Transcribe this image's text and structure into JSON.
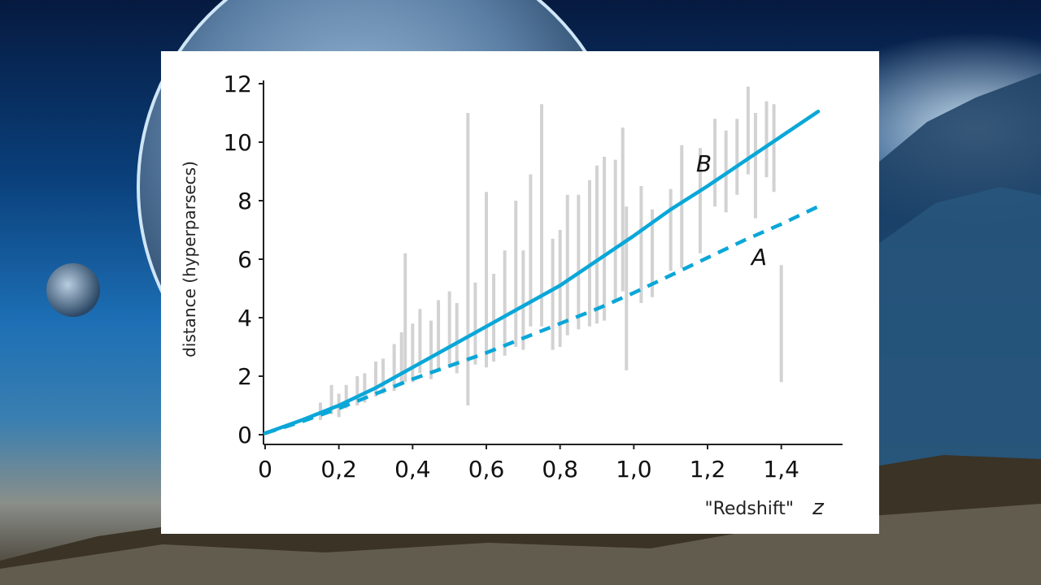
{
  "chart_data": {
    "type": "scatter",
    "xlabel": "\"Redshift\"",
    "xlabel_symbol": "z",
    "ylabel": "distance (hyperparsecs)",
    "xlim": [
      0,
      1.5
    ],
    "ylim": [
      0,
      12
    ],
    "x_ticks": [
      "0",
      "0,2",
      "0,4",
      "0,6",
      "0,8",
      "1,0",
      "1,2",
      "1,4"
    ],
    "x_tick_values": [
      0,
      0.2,
      0.4,
      0.6,
      0.8,
      1.0,
      1.2,
      1.4
    ],
    "y_ticks": [
      "0",
      "2",
      "4",
      "6",
      "8",
      "10",
      "12"
    ],
    "y_tick_values": [
      0,
      2,
      4,
      6,
      8,
      10,
      12
    ],
    "series": [
      {
        "name": "B",
        "style": "solid",
        "color": "#0aa7d8",
        "x": [
          0,
          0.1,
          0.2,
          0.3,
          0.4,
          0.5,
          0.6,
          0.7,
          0.8,
          0.9,
          1.0,
          1.1,
          1.2,
          1.3,
          1.4,
          1.5
        ],
        "y": [
          0.05,
          0.5,
          1.0,
          1.6,
          2.3,
          3.0,
          3.7,
          4.4,
          5.1,
          5.95,
          6.8,
          7.7,
          8.5,
          9.35,
          10.2,
          11.05
        ]
      },
      {
        "name": "A",
        "style": "dashed",
        "color": "#0aa7d8",
        "x": [
          0,
          0.1,
          0.2,
          0.3,
          0.4,
          0.5,
          0.6,
          0.7,
          0.8,
          0.9,
          1.0,
          1.1,
          1.2,
          1.3,
          1.4,
          1.5
        ],
        "y": [
          0.05,
          0.45,
          0.9,
          1.4,
          1.9,
          2.35,
          2.8,
          3.3,
          3.8,
          4.3,
          4.85,
          5.45,
          6.05,
          6.65,
          7.2,
          7.8
        ]
      },
      {
        "name": "",
        "style": "error-bars",
        "color": "#d2d2d2",
        "x": [
          0.15,
          0.18,
          0.2,
          0.22,
          0.25,
          0.27,
          0.3,
          0.32,
          0.35,
          0.37,
          0.38,
          0.4,
          0.42,
          0.45,
          0.47,
          0.5,
          0.52,
          0.55,
          0.57,
          0.6,
          0.62,
          0.65,
          0.68,
          0.7,
          0.72,
          0.75,
          0.78,
          0.8,
          0.82,
          0.85,
          0.88,
          0.9,
          0.92,
          0.95,
          0.97,
          0.98,
          1.02,
          1.05,
          1.1,
          1.13,
          1.18,
          1.22,
          1.25,
          1.28,
          1.31,
          1.33,
          1.36,
          1.38,
          1.4
        ],
        "y": [
          0.8,
          1.2,
          1.0,
          1.3,
          1.5,
          1.6,
          1.9,
          2.0,
          2.3,
          2.6,
          4.0,
          2.8,
          3.2,
          2.9,
          3.4,
          3.6,
          3.3,
          6.0,
          3.8,
          5.3,
          4.0,
          4.5,
          5.5,
          4.6,
          6.3,
          7.5,
          4.8,
          5.0,
          5.8,
          5.9,
          6.2,
          6.5,
          6.7,
          7.0,
          7.7,
          5.0,
          6.5,
          6.2,
          7.0,
          7.8,
          8.0,
          9.3,
          9.0,
          9.5,
          10.4,
          9.2,
          10.1,
          9.8,
          3.8
        ],
        "err": [
          0.3,
          0.5,
          0.4,
          0.4,
          0.5,
          0.5,
          0.6,
          0.6,
          0.8,
          0.9,
          2.2,
          1.0,
          1.1,
          1.0,
          1.2,
          1.3,
          1.2,
          5.0,
          1.4,
          3.0,
          1.5,
          1.8,
          2.5,
          1.7,
          2.6,
          3.8,
          1.9,
          2.0,
          2.4,
          2.3,
          2.5,
          2.7,
          2.8,
          2.4,
          2.8,
          2.8,
          2.0,
          1.5,
          1.4,
          2.1,
          1.8,
          1.5,
          1.4,
          1.3,
          1.5,
          1.8,
          1.3,
          1.5,
          2.0
        ]
      }
    ]
  }
}
